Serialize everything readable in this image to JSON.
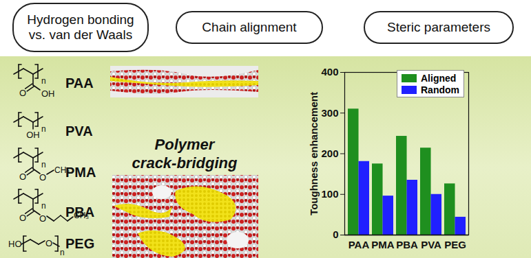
{
  "header": {
    "pills": [
      [
        "Hydrogen bonding",
        "vs. van der Waals"
      ],
      [
        "Chain alignment"
      ],
      [
        "Steric parameters"
      ]
    ]
  },
  "polymers": [
    {
      "name": "PAA",
      "labels": [
        "n",
        "O",
        "OH"
      ]
    },
    {
      "name": "PVA",
      "labels": [
        "n",
        "OH"
      ]
    },
    {
      "name": "PMA",
      "labels": [
        "n",
        "O",
        "O",
        "CH₃"
      ]
    },
    {
      "name": "PBA",
      "labels": [
        "n",
        "O",
        "O",
        "CH₃"
      ]
    },
    {
      "name": "PEG",
      "labels": [
        "HO",
        "O",
        "n"
      ]
    }
  ],
  "center_label": [
    "Polymer",
    "crack-bridging"
  ],
  "chart_data": {
    "type": "bar",
    "ylabel": "Toughness enhancement",
    "categories": [
      "PAA",
      "PMA",
      "PBA",
      "PVA",
      "PEG"
    ],
    "series": [
      {
        "name": "Aligned",
        "color": "#1f8f1f",
        "values": [
          310,
          175,
          243,
          214,
          126
        ]
      },
      {
        "name": "Random",
        "color": "#2020ff",
        "values": [
          181,
          96,
          135,
          100,
          44
        ]
      }
    ],
    "ylim": [
      0,
      400
    ],
    "yticks": [
      0,
      100,
      200,
      300,
      400
    ],
    "grid": false,
    "legend": "upper right"
  }
}
